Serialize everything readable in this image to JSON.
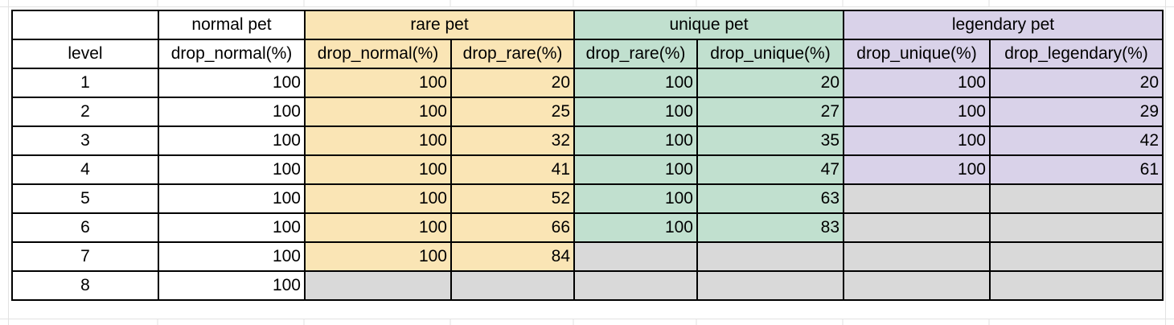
{
  "groups": {
    "normal": "normal pet",
    "rare": "rare pet",
    "unique": "unique pet",
    "legendary": "legendary pet"
  },
  "columns": {
    "level": "level",
    "normal_drop_normal": "drop_normal(%)",
    "rare_drop_normal": "drop_normal(%)",
    "rare_drop_rare": "drop_rare(%)",
    "unique_drop_rare": "drop_rare(%)",
    "unique_drop_unique": "drop_unique(%)",
    "legendary_drop_unique": "drop_unique(%)",
    "legendary_drop_legendary": "drop_legendary(%)"
  },
  "colors": {
    "rare": "#fae5b5",
    "unique": "#c1e0cf",
    "legendary": "#d9d2e9",
    "empty": "#d9d9d9"
  },
  "rows": [
    {
      "level": "1",
      "normal_drop_normal": "100",
      "rare_drop_normal": "100",
      "rare_drop_rare": "20",
      "unique_drop_rare": "100",
      "unique_drop_unique": "20",
      "legendary_drop_unique": "100",
      "legendary_drop_legendary": "20"
    },
    {
      "level": "2",
      "normal_drop_normal": "100",
      "rare_drop_normal": "100",
      "rare_drop_rare": "25",
      "unique_drop_rare": "100",
      "unique_drop_unique": "27",
      "legendary_drop_unique": "100",
      "legendary_drop_legendary": "29"
    },
    {
      "level": "3",
      "normal_drop_normal": "100",
      "rare_drop_normal": "100",
      "rare_drop_rare": "32",
      "unique_drop_rare": "100",
      "unique_drop_unique": "35",
      "legendary_drop_unique": "100",
      "legendary_drop_legendary": "42"
    },
    {
      "level": "4",
      "normal_drop_normal": "100",
      "rare_drop_normal": "100",
      "rare_drop_rare": "41",
      "unique_drop_rare": "100",
      "unique_drop_unique": "47",
      "legendary_drop_unique": "100",
      "legendary_drop_legendary": "61"
    },
    {
      "level": "5",
      "normal_drop_normal": "100",
      "rare_drop_normal": "100",
      "rare_drop_rare": "52",
      "unique_drop_rare": "100",
      "unique_drop_unique": "63",
      "legendary_drop_unique": null,
      "legendary_drop_legendary": null
    },
    {
      "level": "6",
      "normal_drop_normal": "100",
      "rare_drop_normal": "100",
      "rare_drop_rare": "66",
      "unique_drop_rare": "100",
      "unique_drop_unique": "83",
      "legendary_drop_unique": null,
      "legendary_drop_legendary": null
    },
    {
      "level": "7",
      "normal_drop_normal": "100",
      "rare_drop_normal": "100",
      "rare_drop_rare": "84",
      "unique_drop_rare": null,
      "unique_drop_unique": null,
      "legendary_drop_unique": null,
      "legendary_drop_legendary": null
    },
    {
      "level": "8",
      "normal_drop_normal": "100",
      "rare_drop_normal": null,
      "rare_drop_rare": null,
      "unique_drop_rare": null,
      "unique_drop_unique": null,
      "legendary_drop_unique": null,
      "legendary_drop_legendary": null
    }
  ]
}
